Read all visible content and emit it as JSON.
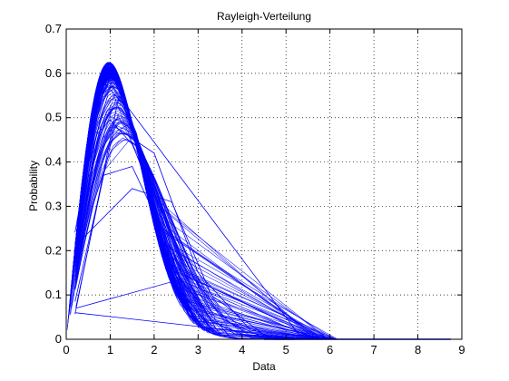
{
  "chart_data": {
    "type": "line",
    "title": "Rayleigh-Verteilung",
    "xlabel": "Data",
    "ylabel": "Probability",
    "xlim": [
      0,
      9
    ],
    "ylim": [
      0,
      0.7
    ],
    "xticks": [
      0,
      1,
      2,
      3,
      4,
      5,
      6,
      7,
      8,
      9
    ],
    "yticks": [
      0,
      0.1,
      0.2,
      0.3,
      0.4,
      0.5,
      0.6,
      0.7
    ],
    "grid": true,
    "grid_style": "dotted",
    "line_color": "#0000ff",
    "axes_color": "#000000",
    "background_color": "#ffffff",
    "x_data_max": 8.75,
    "peak": {
      "x": 1.0,
      "y": 0.607
    },
    "series_count": 200,
    "series": [
      {
        "values": [
          [
            0.2,
            0.241
          ],
          [
            0.65,
            0.493
          ],
          [
            1.0,
            0.607
          ],
          [
            1.6,
            0.464
          ],
          [
            2.2,
            0.196
          ],
          [
            2.8,
            0.056
          ],
          [
            3.3,
            0.014
          ],
          [
            4.0,
            0.001
          ],
          [
            5.0,
            0.0
          ],
          [
            8.75,
            0.0
          ]
        ]
      },
      {
        "values": [
          [
            0.2,
            0.214
          ],
          [
            0.4,
            0.36
          ],
          [
            0.7,
            0.463
          ],
          [
            1.0,
            0.495
          ],
          [
            1.5,
            0.44
          ],
          [
            2.1,
            0.302
          ],
          [
            2.8,
            0.15
          ],
          [
            3.6,
            0.05
          ],
          [
            4.6,
            0.007
          ],
          [
            5.8,
            0.0
          ]
        ]
      },
      {
        "values": [
          [
            0.22,
            0.072
          ],
          [
            0.85,
            0.37
          ],
          [
            1.5,
            0.39
          ],
          [
            2.4,
            0.2
          ],
          [
            3.3,
            0.04
          ],
          [
            4.2,
            0.004
          ],
          [
            5.6,
            0.0
          ]
        ]
      },
      {
        "values": [
          [
            0.2,
            0.085
          ],
          [
            1.1,
            0.48
          ],
          [
            2.0,
            0.42
          ],
          [
            3.0,
            0.15
          ],
          [
            4.2,
            0.02
          ],
          [
            6.1,
            0.0
          ]
        ]
      },
      {
        "values": [
          [
            0.2,
            0.057
          ],
          [
            1.2,
            0.55
          ],
          [
            5.3,
            0.01
          ],
          [
            6.2,
            0.0
          ]
        ]
      },
      {
        "values": [
          [
            0.22,
            0.07
          ],
          [
            2.6,
            0.135
          ],
          [
            3.2,
            0.06
          ],
          [
            4.5,
            0.004
          ],
          [
            5.4,
            0.0
          ]
        ]
      },
      {
        "values": [
          [
            0.2,
            0.06
          ],
          [
            3.8,
            0.02
          ],
          [
            5.0,
            0.002
          ],
          [
            6.0,
            0.0
          ]
        ]
      },
      {
        "values": [
          [
            0.22,
            0.212
          ],
          [
            1.5,
            0.34
          ],
          [
            2.4,
            0.31
          ],
          [
            3.3,
            0.1
          ],
          [
            4.5,
            0.01
          ],
          [
            5.8,
            0.0
          ]
        ]
      }
    ]
  }
}
